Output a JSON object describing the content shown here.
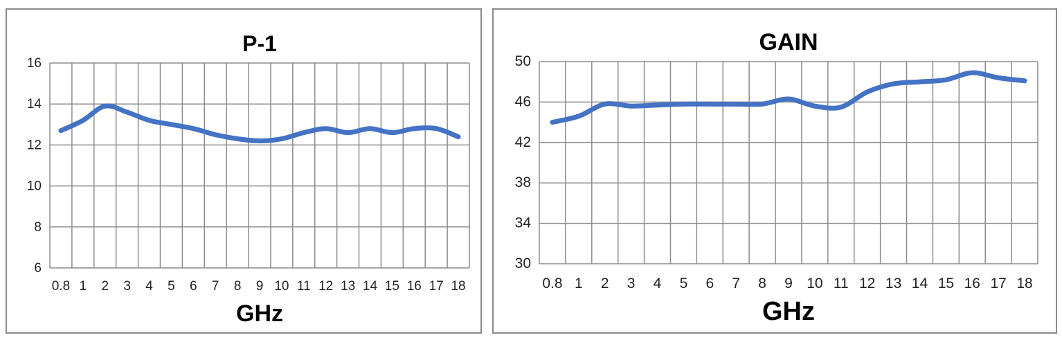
{
  "chart_data": [
    {
      "type": "line",
      "title": "P-1",
      "xlabel": "GHz",
      "ylabel": "",
      "categories": [
        "0.8",
        "1",
        "2",
        "3",
        "4",
        "5",
        "6",
        "7",
        "8",
        "9",
        "10",
        "11",
        "12",
        "13",
        "14",
        "15",
        "16",
        "17",
        "18"
      ],
      "values": [
        12.7,
        13.2,
        13.9,
        13.6,
        13.2,
        13.0,
        12.8,
        12.5,
        12.3,
        12.2,
        12.3,
        12.6,
        12.8,
        12.6,
        12.8,
        12.6,
        12.8,
        12.8,
        12.4
      ],
      "ylim": [
        6,
        16
      ],
      "yticks": [
        "16",
        "14",
        "12",
        "10",
        "8",
        "6"
      ],
      "grid": true,
      "line_color": "#4472c4"
    },
    {
      "type": "line",
      "title": "GAIN",
      "xlabel": "GHz",
      "ylabel": "",
      "categories": [
        "0.8",
        "1",
        "2",
        "3",
        "4",
        "5",
        "6",
        "7",
        "8",
        "9",
        "10",
        "11",
        "12",
        "13",
        "14",
        "15",
        "16",
        "17",
        "18"
      ],
      "values": [
        44.0,
        44.6,
        45.8,
        45.6,
        45.7,
        45.8,
        45.8,
        45.8,
        45.8,
        46.3,
        45.6,
        45.5,
        47.0,
        47.8,
        48.0,
        48.2,
        48.9,
        48.4,
        48.1
      ],
      "ylim": [
        30,
        50
      ],
      "yticks": [
        "50",
        "46",
        "42",
        "38",
        "34",
        "30"
      ],
      "grid": true,
      "line_color": "#4472c4"
    }
  ]
}
